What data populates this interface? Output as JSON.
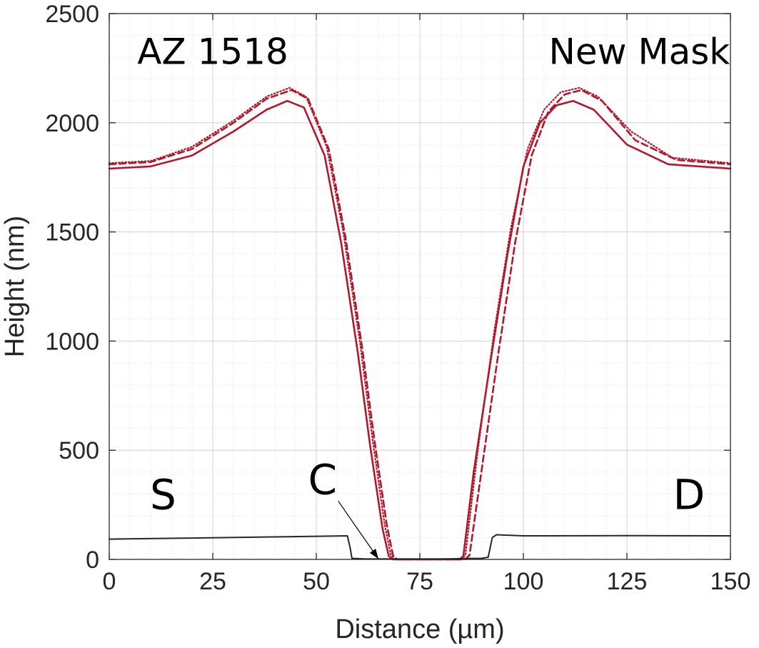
{
  "chart_data": {
    "type": "line",
    "title": "",
    "xlabel": "Distance (µm)",
    "ylabel": "Height (nm)",
    "xlim": [
      0,
      150
    ],
    "ylim": [
      0,
      2500
    ],
    "x_ticks": [
      0,
      25,
      50,
      75,
      100,
      125,
      150
    ],
    "y_ticks": [
      0,
      500,
      1000,
      1500,
      2000,
      2500
    ],
    "grid": "major and minor",
    "legend": "none",
    "annotations": [
      {
        "text": "AZ 1518",
        "x": 25,
        "y": 2270
      },
      {
        "text": "New Mask",
        "x": 128,
        "y": 2270
      },
      {
        "text": "S",
        "x": 13,
        "y": 230
      },
      {
        "text": "D",
        "x": 140,
        "y": 230
      },
      {
        "text": "C",
        "x": 51.5,
        "y": 300,
        "arrow_to": {
          "x": 65,
          "y": 2
        }
      }
    ],
    "series": [
      {
        "style": "solid",
        "color": "#b2182b",
        "x": [
          0,
          10,
          20,
          30,
          38,
          43,
          47,
          52,
          56,
          60,
          63,
          66,
          67.5,
          68.5,
          72,
          80,
          84.5,
          85.5,
          88,
          92,
          96,
          100,
          104,
          108,
          112,
          117,
          125,
          135,
          150
        ],
        "y": [
          1790,
          1800,
          1850,
          1960,
          2060,
          2100,
          2070,
          1850,
          1450,
          950,
          520,
          140,
          15,
          0,
          0,
          0,
          0,
          15,
          400,
          900,
          1380,
          1800,
          2000,
          2080,
          2100,
          2060,
          1900,
          1810,
          1790
        ]
      },
      {
        "style": "dashed",
        "color": "#b2182b",
        "x": [
          0,
          10,
          20,
          30,
          38,
          44,
          48,
          53,
          57,
          61,
          64,
          67,
          68.5,
          69.5,
          74,
          82,
          86,
          87,
          90,
          94,
          98,
          102,
          106,
          110,
          114,
          119,
          127,
          137,
          150
        ],
        "y": [
          1810,
          1820,
          1880,
          2000,
          2110,
          2150,
          2110,
          1880,
          1480,
          980,
          550,
          160,
          20,
          0,
          0,
          0,
          0,
          20,
          420,
          950,
          1450,
          1850,
          2050,
          2130,
          2150,
          2100,
          1920,
          1830,
          1810
        ]
      },
      {
        "style": "dotted",
        "color": "#b2182b",
        "x": [
          0,
          10,
          20,
          30,
          38,
          43.5,
          47.5,
          52.5,
          56.5,
          60.5,
          63.5,
          66.5,
          68,
          69,
          73,
          81,
          85,
          86,
          89,
          93,
          97,
          101,
          105,
          109,
          113.5,
          118,
          126,
          136,
          150
        ],
        "y": [
          1815,
          1825,
          1890,
          2010,
          2120,
          2160,
          2120,
          1890,
          1500,
          1000,
          560,
          160,
          20,
          0,
          0,
          0,
          0,
          20,
          500,
          1050,
          1520,
          1880,
          2060,
          2140,
          2160,
          2120,
          1960,
          1840,
          1815
        ]
      },
      {
        "style": "solid",
        "color": "#262626",
        "x": [
          0,
          20,
          40,
          57.5,
          58.2,
          58.6,
          62,
          70,
          80,
          86,
          90,
          91.5,
          92.5,
          93.5,
          100,
          125,
          150
        ],
        "y": [
          93,
          98,
          103,
          108,
          50,
          5,
          2,
          2,
          2,
          4,
          5,
          10,
          100,
          113,
          108,
          109,
          108
        ]
      }
    ]
  }
}
